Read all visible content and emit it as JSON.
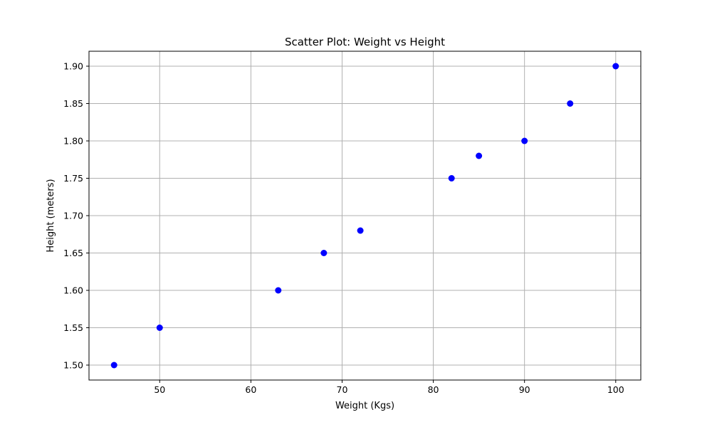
{
  "chart_data": {
    "type": "scatter",
    "title": "Scatter Plot: Weight vs Height",
    "xlabel": "Weight (Kgs)",
    "ylabel": "Height (meters)",
    "xlim": [
      42.25,
      102.75
    ],
    "ylim": [
      1.48,
      1.92
    ],
    "x_ticks": [
      50,
      60,
      70,
      80,
      90,
      100
    ],
    "x_tick_labels": [
      "50",
      "60",
      "70",
      "80",
      "90",
      "100"
    ],
    "y_ticks": [
      1.5,
      1.55,
      1.6,
      1.65,
      1.7,
      1.75,
      1.8,
      1.85,
      1.9
    ],
    "y_tick_labels": [
      "1.50",
      "1.55",
      "1.60",
      "1.65",
      "1.70",
      "1.75",
      "1.80",
      "1.85",
      "1.90"
    ],
    "grid": true,
    "marker_color": "#0000ff",
    "series": [
      {
        "x": [
          45,
          50,
          63,
          68,
          72,
          82,
          85,
          90,
          95,
          100
        ],
        "y": [
          1.5,
          1.55,
          1.6,
          1.65,
          1.68,
          1.75,
          1.78,
          1.8,
          1.85,
          1.9
        ]
      }
    ]
  }
}
